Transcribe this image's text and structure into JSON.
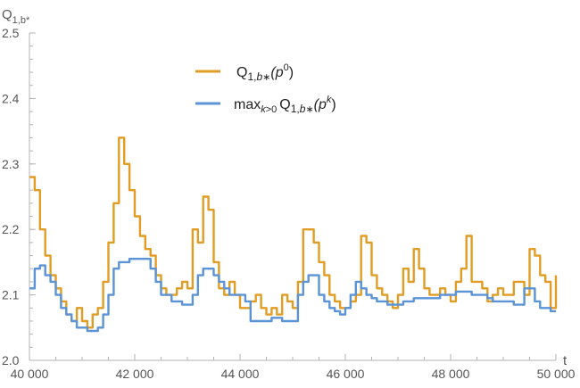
{
  "chart_data": {
    "type": "line",
    "title": "",
    "xlabel": "t",
    "ylabel": "Q1,b*",
    "ylabel_main": "Q",
    "ylabel_sub": "1,b*",
    "xlim": [
      40000,
      50000
    ],
    "ylim": [
      2.0,
      2.5
    ],
    "xticks": [
      40000,
      42000,
      44000,
      46000,
      48000,
      50000
    ],
    "xtick_labels": [
      "40 000",
      "42 000",
      "44 000",
      "46 000",
      "48 000",
      "50 000"
    ],
    "yticks": [
      2.0,
      2.1,
      2.2,
      2.3,
      2.4,
      2.5
    ],
    "ytick_labels": [
      "2.0",
      "2.1",
      "2.2",
      "2.3",
      "2.4",
      "2.5"
    ],
    "grid": false,
    "legend_position": "top-center",
    "series": [
      {
        "name": "Q1,b*(p0)",
        "color": "#E19C24",
        "x": [
          40000,
          40100,
          40200,
          40300,
          40400,
          40500,
          40600,
          40700,
          40800,
          40900,
          41000,
          41100,
          41200,
          41300,
          41400,
          41500,
          41600,
          41700,
          41800,
          41900,
          42000,
          42100,
          42200,
          42300,
          42400,
          42500,
          42600,
          42700,
          42800,
          42900,
          43000,
          43100,
          43200,
          43300,
          43400,
          43500,
          43600,
          43700,
          43800,
          43900,
          44000,
          44100,
          44200,
          44300,
          44400,
          44500,
          44600,
          44700,
          44800,
          44900,
          45000,
          45100,
          45200,
          45300,
          45400,
          45500,
          45600,
          45700,
          45800,
          45900,
          46000,
          46100,
          46200,
          46300,
          46400,
          46500,
          46600,
          46700,
          46800,
          46900,
          47000,
          47100,
          47200,
          47300,
          47400,
          47500,
          47600,
          47700,
          47800,
          47900,
          48000,
          48100,
          48200,
          48300,
          48400,
          48500,
          48600,
          48700,
          48800,
          48900,
          49000,
          49100,
          49200,
          49300,
          49400,
          49500,
          49600,
          49700,
          49800,
          49900,
          50000
        ],
        "values": [
          2.28,
          2.26,
          2.2,
          2.16,
          2.13,
          2.11,
          2.09,
          2.07,
          2.06,
          2.08,
          2.06,
          2.05,
          2.07,
          2.08,
          2.12,
          2.18,
          2.24,
          2.34,
          2.3,
          2.26,
          2.22,
          2.19,
          2.17,
          2.16,
          2.13,
          2.11,
          2.1,
          2.1,
          2.11,
          2.12,
          2.11,
          2.2,
          2.18,
          2.25,
          2.23,
          2.15,
          2.11,
          2.1,
          2.12,
          2.1,
          2.08,
          2.08,
          2.09,
          2.1,
          2.08,
          2.07,
          2.08,
          2.07,
          2.1,
          2.09,
          2.08,
          2.12,
          2.2,
          2.2,
          2.18,
          2.15,
          2.13,
          2.1,
          2.09,
          2.08,
          2.08,
          2.09,
          2.1,
          2.19,
          2.18,
          2.13,
          2.11,
          2.1,
          2.09,
          2.08,
          2.1,
          2.14,
          2.12,
          2.17,
          2.14,
          2.11,
          2.1,
          2.1,
          2.11,
          2.1,
          2.09,
          2.12,
          2.14,
          2.19,
          2.12,
          2.12,
          2.11,
          2.09,
          2.1,
          2.11,
          2.1,
          2.1,
          2.12,
          2.12,
          2.1,
          2.17,
          2.16,
          2.13,
          2.12,
          2.08,
          2.13
        ]
      },
      {
        "name": "max_{k>0} Q1,b*(pk)",
        "color": "#5A93D6",
        "x": [
          40000,
          40100,
          40200,
          40300,
          40400,
          40500,
          40600,
          40700,
          40800,
          40900,
          41000,
          41100,
          41200,
          41300,
          41400,
          41500,
          41600,
          41700,
          41800,
          41900,
          42000,
          42100,
          42200,
          42300,
          42400,
          42500,
          42600,
          42700,
          42800,
          42900,
          43000,
          43100,
          43200,
          43300,
          43400,
          43500,
          43600,
          43700,
          43800,
          43900,
          44000,
          44100,
          44200,
          44300,
          44400,
          44500,
          44600,
          44700,
          44800,
          44900,
          45000,
          45100,
          45200,
          45300,
          45400,
          45500,
          45600,
          45700,
          45800,
          45900,
          46000,
          46100,
          46200,
          46300,
          46400,
          46500,
          46600,
          46700,
          46800,
          46900,
          47000,
          47100,
          47200,
          47300,
          47400,
          47500,
          47600,
          47700,
          47800,
          47900,
          48000,
          48100,
          48200,
          48300,
          48400,
          48500,
          48600,
          48700,
          48800,
          48900,
          49000,
          49100,
          49200,
          49300,
          49400,
          49500,
          49600,
          49700,
          49800,
          49900,
          50000
        ],
        "values": [
          2.11,
          2.14,
          2.145,
          2.13,
          2.12,
          2.1,
          2.08,
          2.07,
          2.06,
          2.05,
          2.05,
          2.045,
          2.045,
          2.05,
          2.07,
          2.1,
          2.14,
          2.15,
          2.15,
          2.155,
          2.155,
          2.155,
          2.155,
          2.14,
          2.12,
          2.1,
          2.1,
          2.09,
          2.09,
          2.085,
          2.085,
          2.1,
          2.13,
          2.14,
          2.14,
          2.13,
          2.12,
          2.11,
          2.1,
          2.1,
          2.1,
          2.09,
          2.06,
          2.06,
          2.06,
          2.06,
          2.065,
          2.065,
          2.06,
          2.06,
          2.06,
          2.1,
          2.12,
          2.13,
          2.13,
          2.1,
          2.09,
          2.08,
          2.075,
          2.07,
          2.08,
          2.1,
          2.12,
          2.11,
          2.1,
          2.095,
          2.09,
          2.09,
          2.085,
          2.085,
          2.085,
          2.09,
          2.09,
          2.095,
          2.095,
          2.095,
          2.095,
          2.095,
          2.1,
          2.1,
          2.1,
          2.105,
          2.105,
          2.105,
          2.1,
          2.1,
          2.1,
          2.095,
          2.09,
          2.09,
          2.09,
          2.09,
          2.085,
          2.085,
          2.11,
          2.11,
          2.09,
          2.08,
          2.08,
          2.075,
          2.075
        ]
      }
    ]
  }
}
